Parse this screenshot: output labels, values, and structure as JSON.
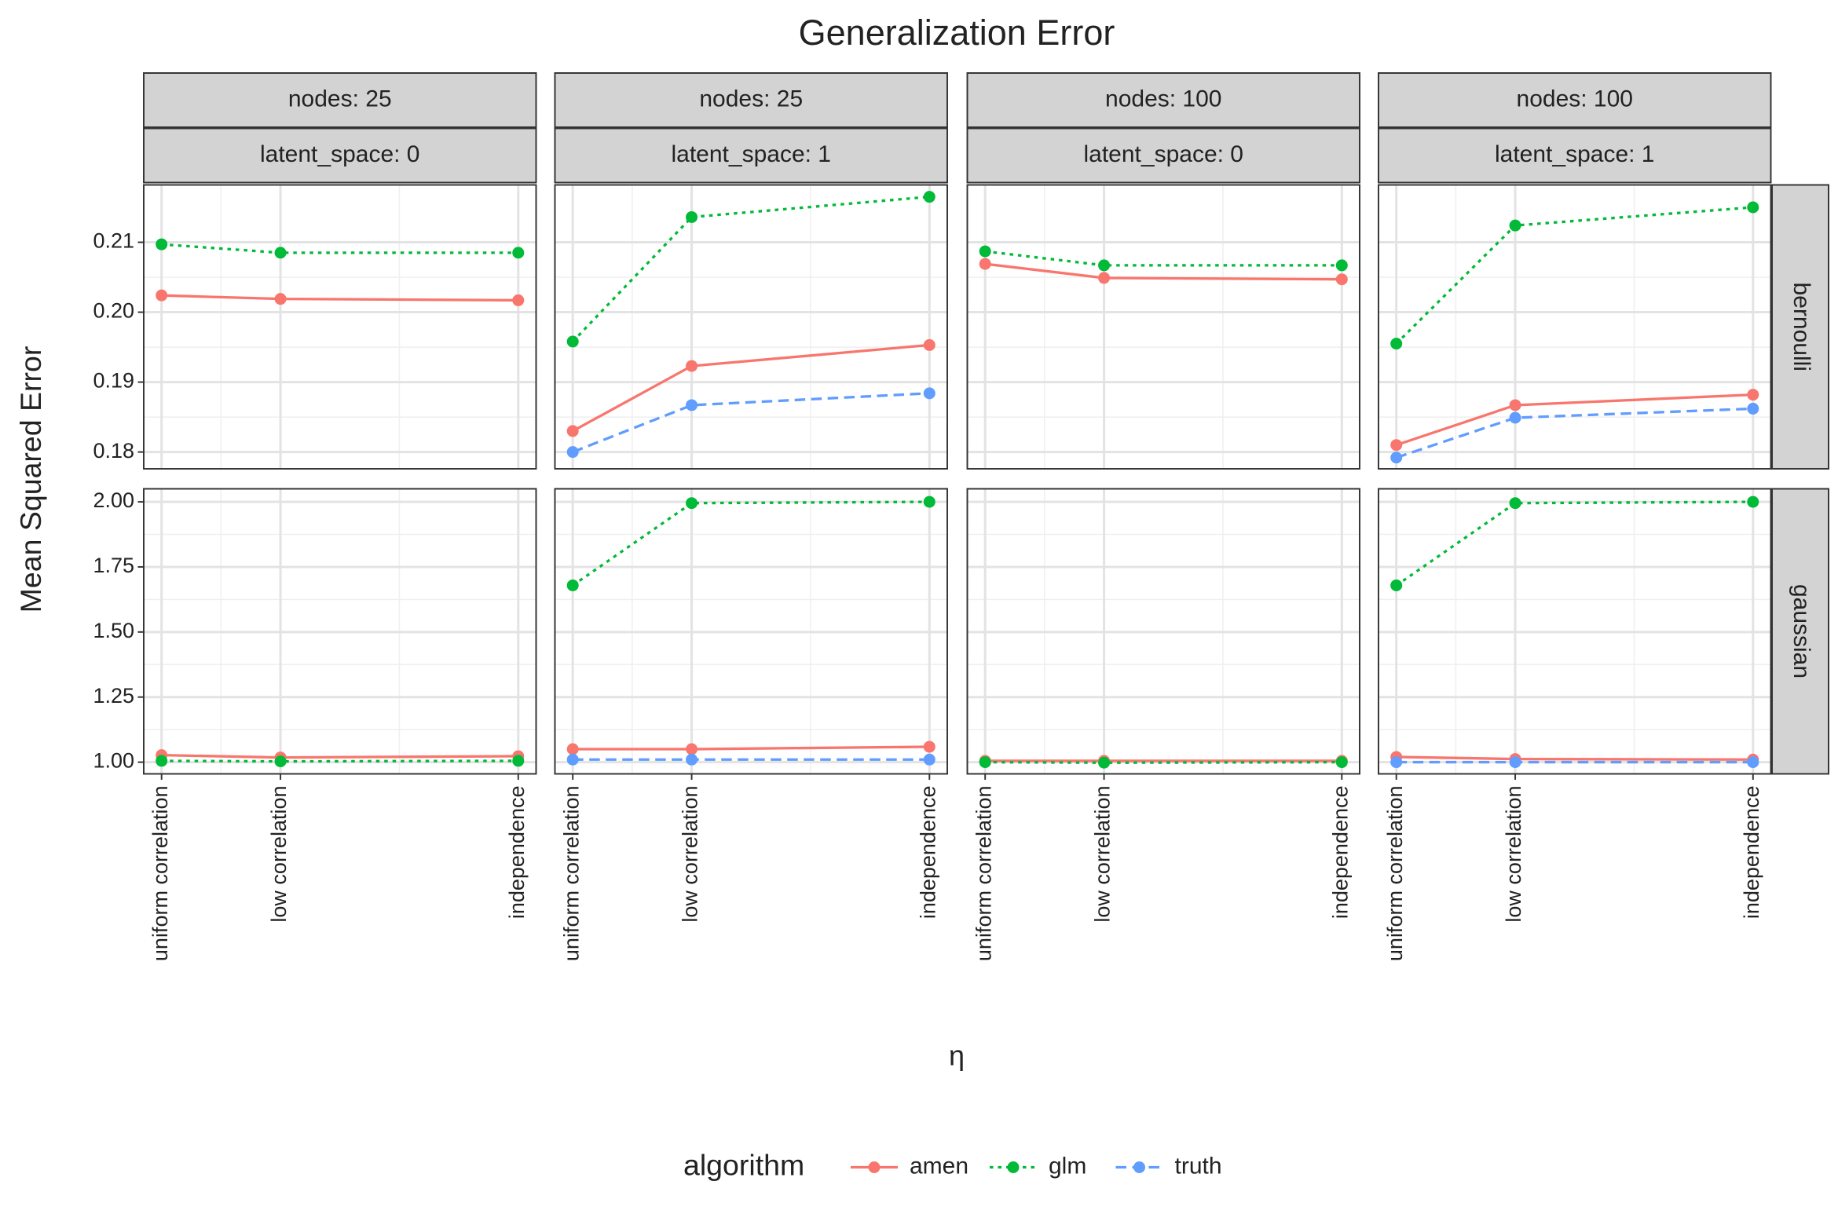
{
  "chart_data": {
    "type": "line",
    "title": "Generalization Error",
    "x_label": "η",
    "y_label": "Mean Squared Error",
    "legend_title": "algorithm",
    "x": [
      0,
      1,
      3
    ],
    "xlim": [
      -0.15,
      3.15
    ],
    "xticks": [
      {
        "value": 0,
        "label": "uniform correlation"
      },
      {
        "value": 1,
        "label": "low correlation"
      },
      {
        "value": 3,
        "label": "independence"
      }
    ],
    "grid": true,
    "columns": [
      {
        "strips": [
          "nodes: 25",
          "latent_space: 0"
        ]
      },
      {
        "strips": [
          "nodes: 25",
          "latent_space: 1"
        ]
      },
      {
        "strips": [
          "nodes: 100",
          "latent_space: 0"
        ]
      },
      {
        "strips": [
          "nodes: 100",
          "latent_space: 1"
        ]
      }
    ],
    "rows": [
      {
        "label": "bernoulli",
        "ylim": [
          0.1776,
          0.2182
        ],
        "yticks": [
          0.18,
          0.19,
          {
            "value": 0.2,
            "label": "0.20"
          },
          0.21
        ]
      },
      {
        "label": "gaussian",
        "ylim": [
          0.955,
          2.05
        ],
        "yticks": [
          {
            "value": 1,
            "label": "1.00"
          },
          1.25,
          {
            "value": 1.5,
            "label": "1.50"
          },
          1.75,
          {
            "value": 2,
            "label": "2.00"
          }
        ]
      }
    ],
    "series": [
      {
        "name": "amen",
        "color": "#F8766D",
        "dash": "solid",
        "values": [
          [
            [
              0.2024,
              0.2019,
              0.2017
            ],
            [
              0.183,
              0.1923,
              0.1953
            ],
            [
              0.2069,
              0.2049,
              0.2047
            ],
            [
              0.181,
              0.1867,
              0.1882
            ]
          ],
          [
            [
              1.027,
              1.018,
              1.023
            ],
            [
              1.05,
              1.05,
              1.059
            ],
            [
              1.005,
              1.005,
              1.005
            ],
            [
              1.02,
              1.012,
              1.01
            ]
          ]
        ]
      },
      {
        "name": "glm",
        "color": "#00BA38",
        "dash": "dotted",
        "values": [
          [
            [
              0.2097,
              0.2085,
              0.2085
            ],
            [
              0.1958,
              0.2136,
              0.2165
            ],
            [
              0.2087,
              0.2067,
              0.2067
            ],
            [
              0.1955,
              0.2124,
              0.215
            ]
          ],
          [
            [
              1.005,
              1.003,
              1.005
            ],
            [
              1.679,
              1.995,
              2.0
            ],
            [
              1.0,
              0.998,
              1.0
            ],
            [
              1.679,
              1.995,
              2.0
            ]
          ]
        ]
      },
      {
        "name": "truth",
        "color": "#619CFF",
        "dash": "dashed",
        "values": [
          [
            [
              null,
              null,
              null
            ],
            [
              0.18,
              0.1867,
              0.1884
            ],
            [
              null,
              null,
              null
            ],
            [
              0.1792,
              0.1849,
              0.1862
            ]
          ],
          [
            [
              null,
              null,
              null
            ],
            [
              1.01,
              1.01,
              1.01
            ],
            [
              null,
              null,
              null
            ],
            [
              1.0,
              1.0,
              1.0
            ]
          ]
        ]
      }
    ]
  }
}
